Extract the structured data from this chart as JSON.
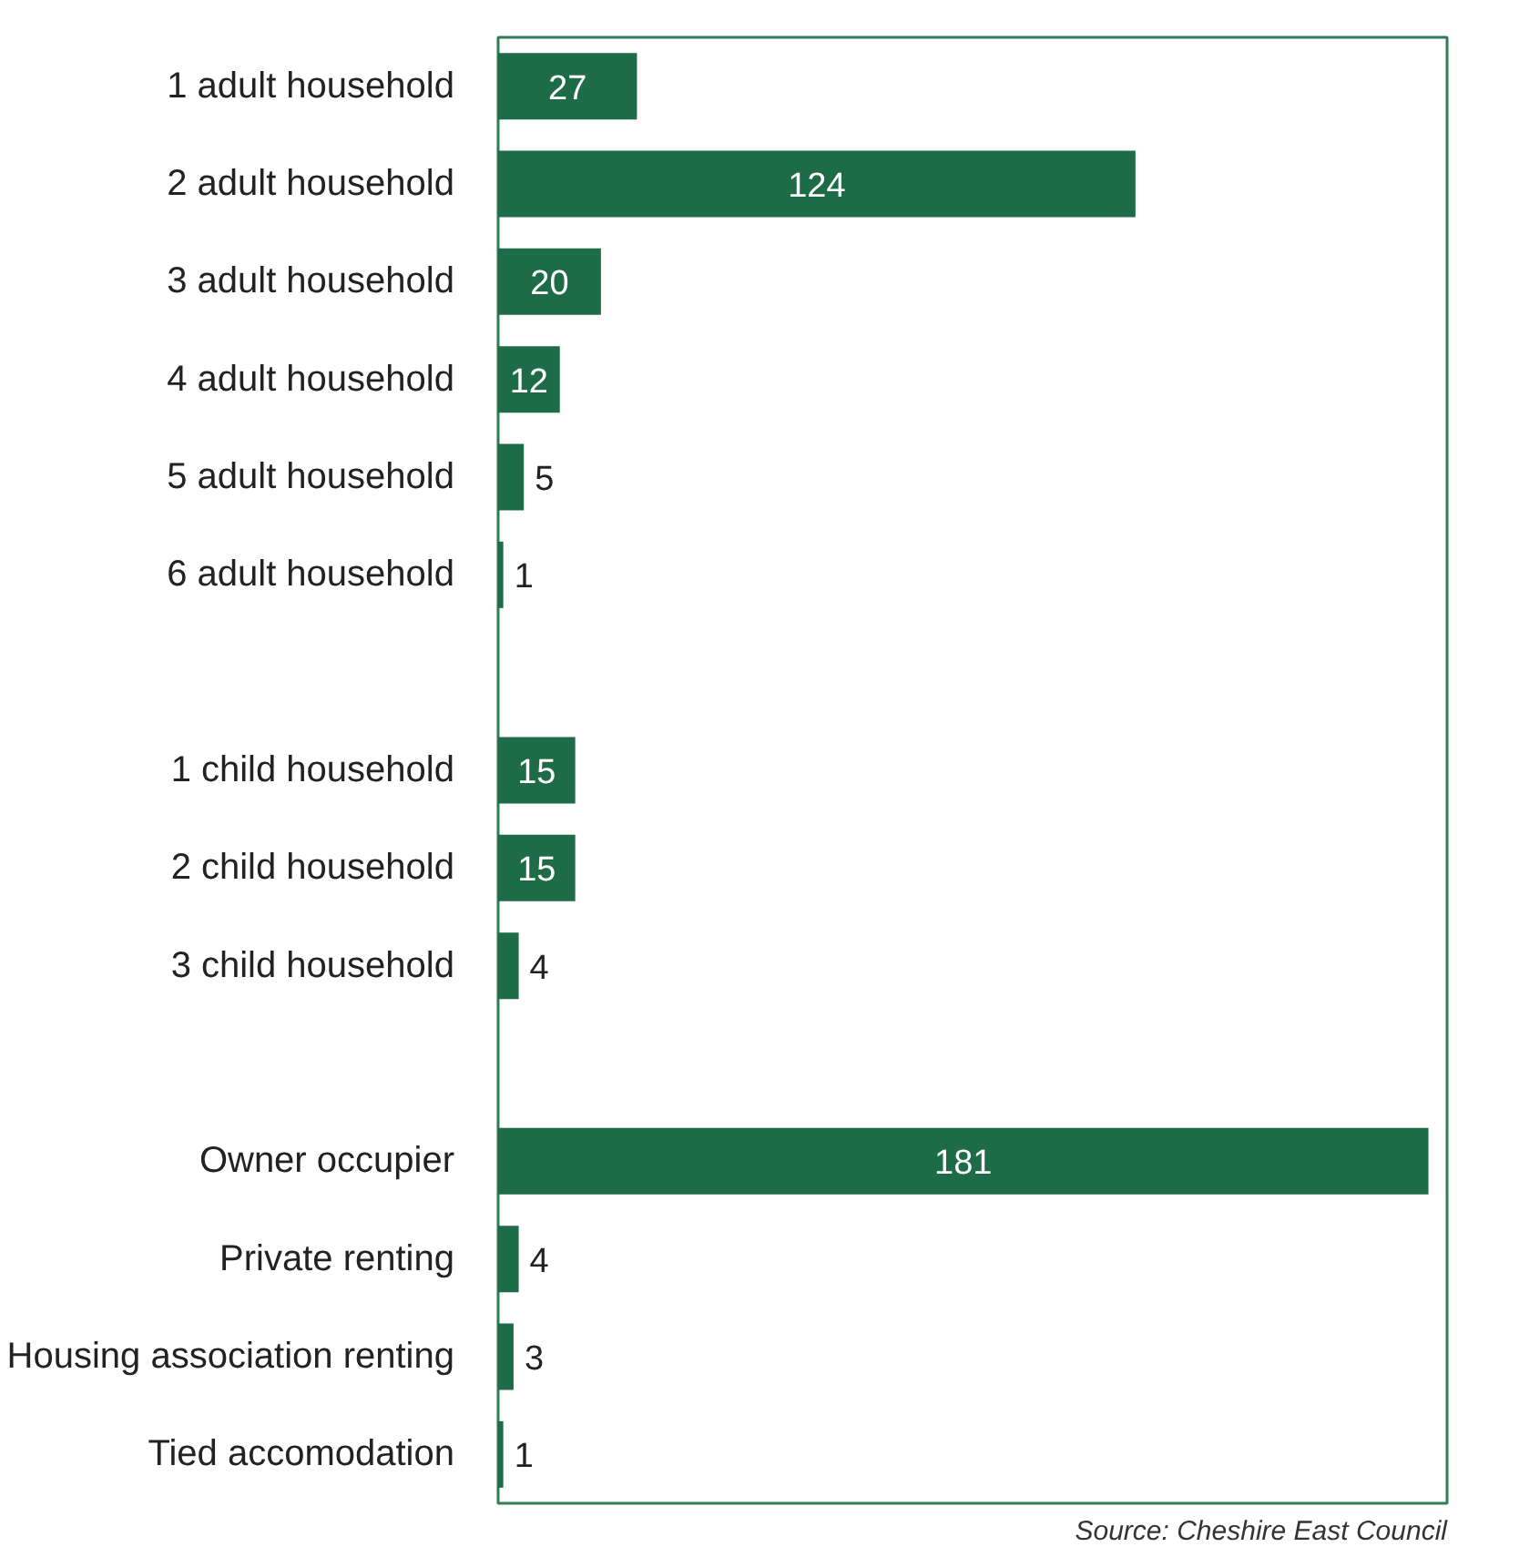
{
  "chart_data": {
    "type": "bar",
    "orientation": "horizontal",
    "categories": [
      "1 adult household",
      "2 adult household",
      "3 adult household",
      "4 adult household",
      "5 adult household",
      "6 adult household",
      null,
      "1 child household",
      "2 child household",
      "3 child household",
      null,
      "Owner occupier",
      "Private renting",
      "Housing association renting",
      "Tied accomodation"
    ],
    "values": [
      27,
      124,
      20,
      12,
      5,
      1,
      null,
      15,
      15,
      4,
      null,
      181,
      4,
      3,
      1
    ],
    "color": "#1e6b47",
    "data_labels": true,
    "annotations": [
      "Source: Cheshire East Council"
    ]
  }
}
